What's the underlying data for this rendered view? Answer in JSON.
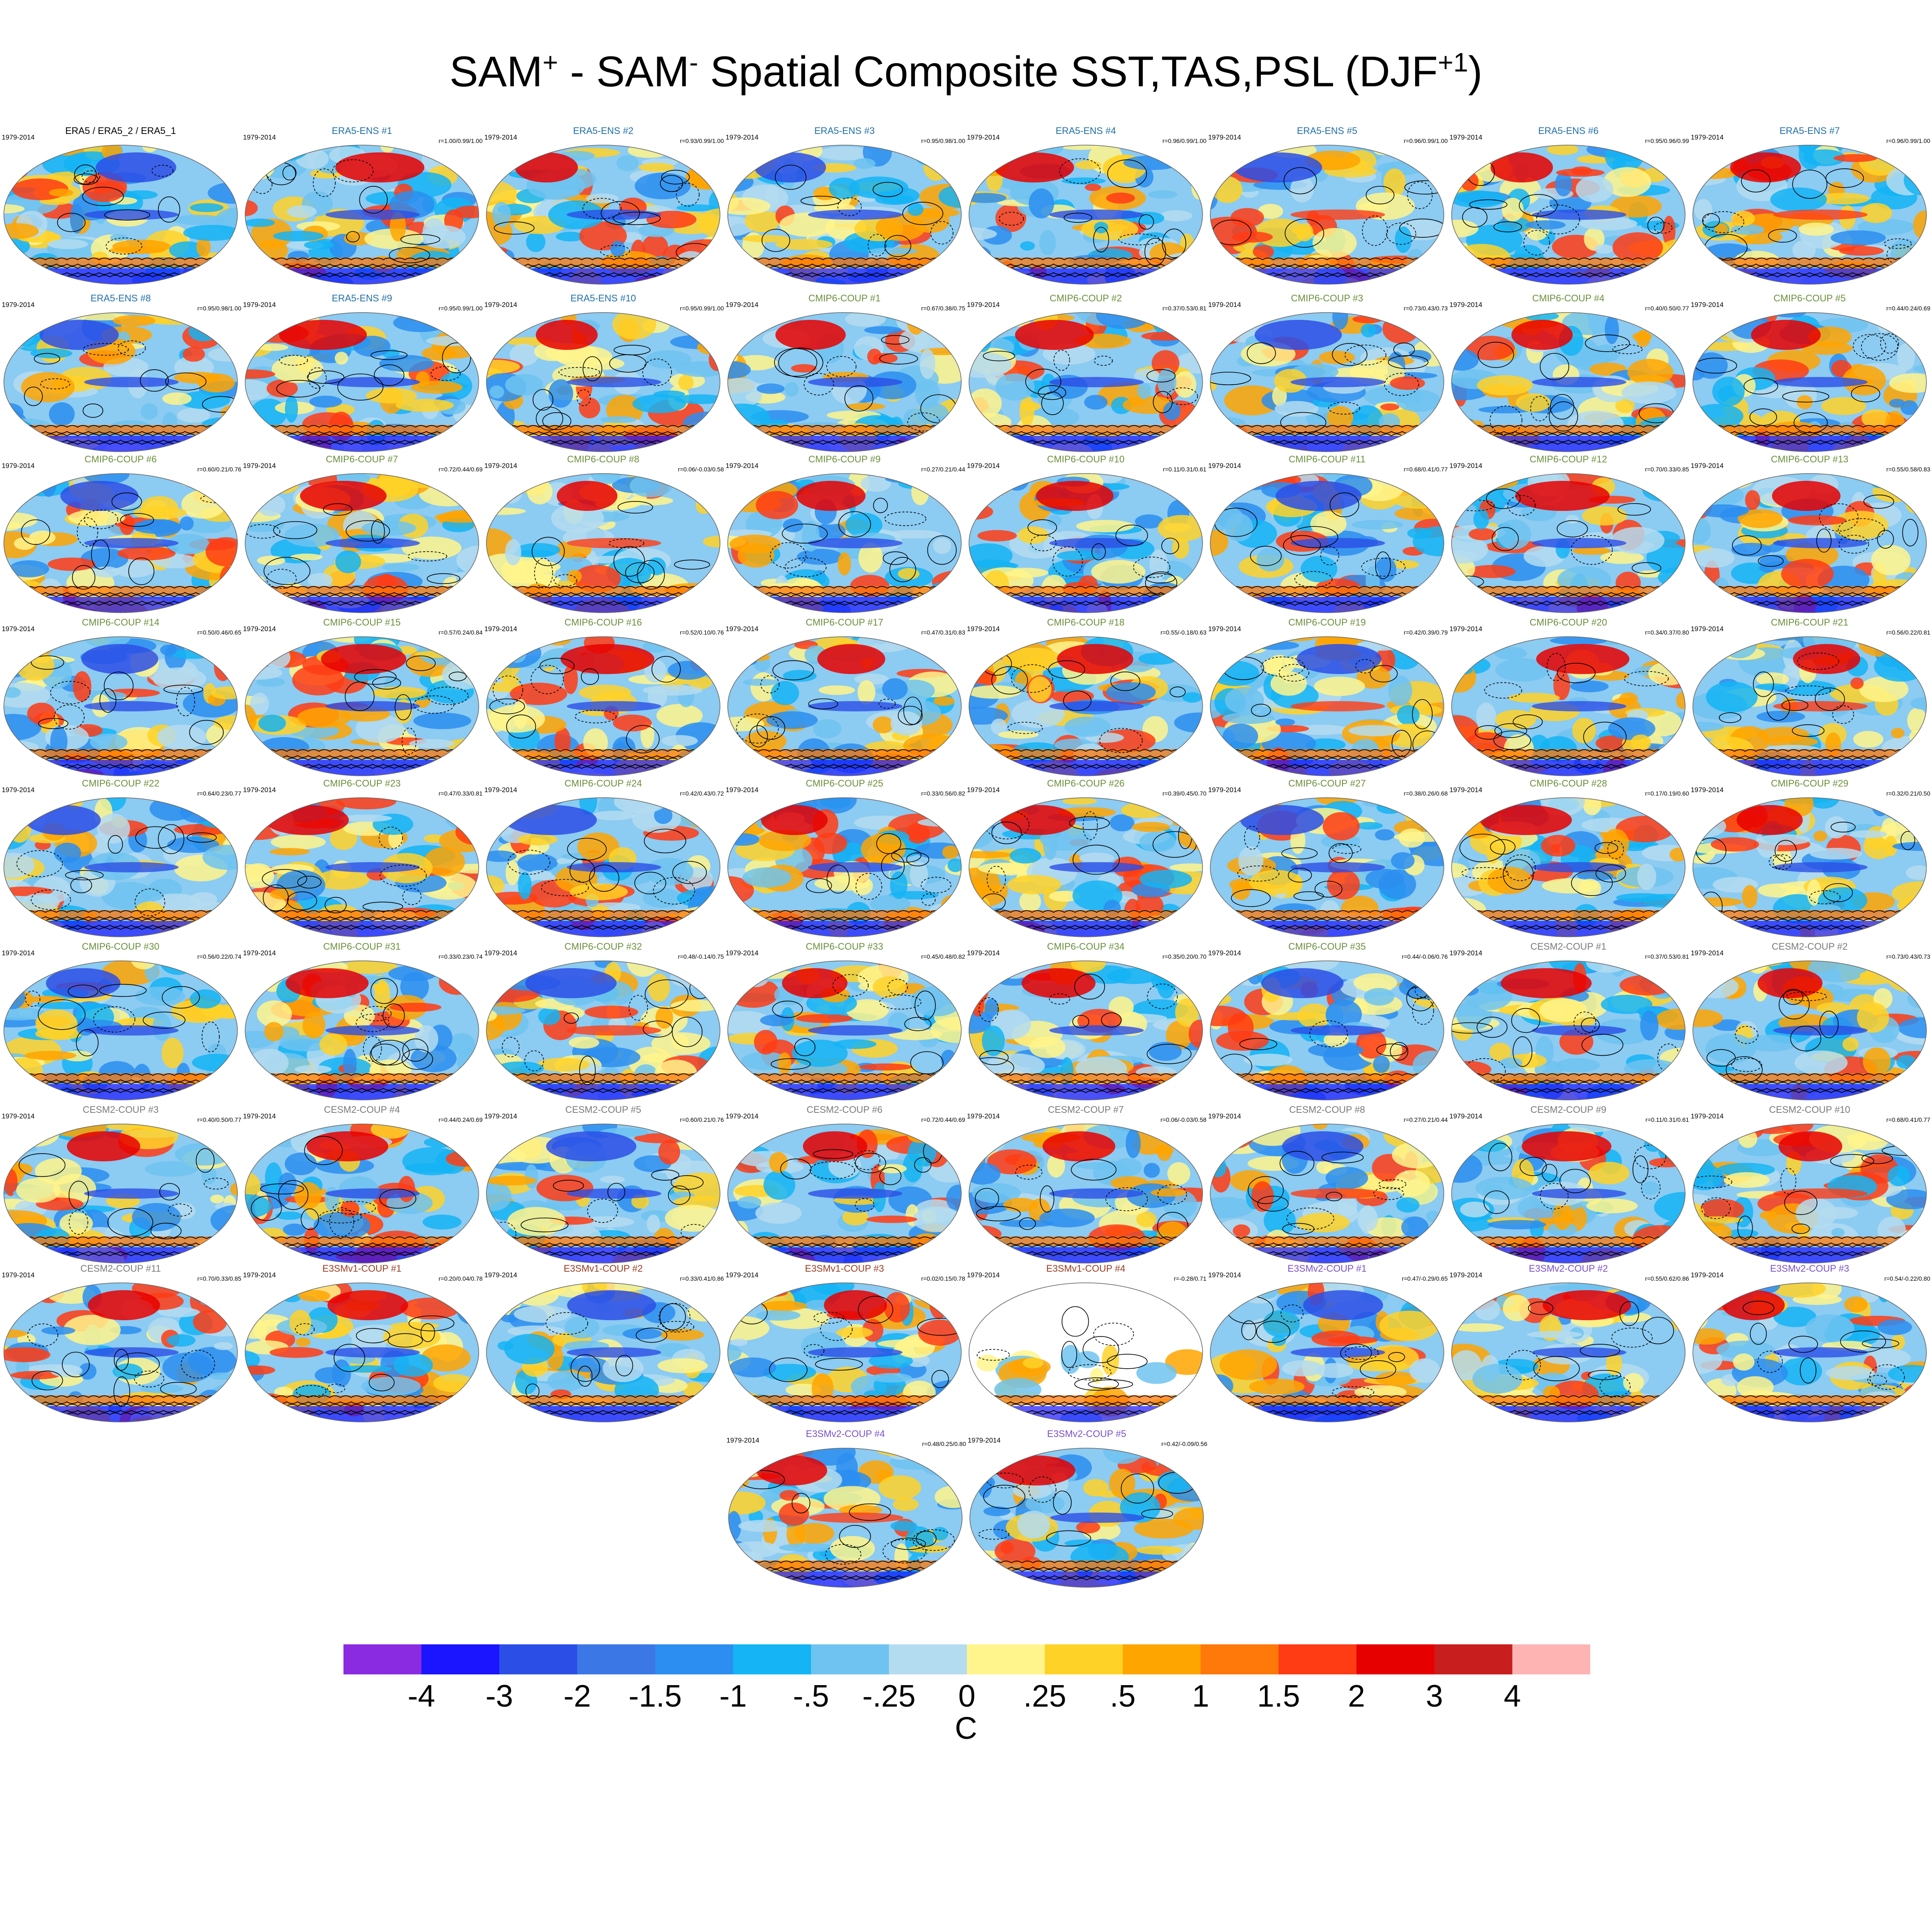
{
  "title": {
    "part1": "SAM",
    "sup1": "+",
    "part2": " - SAM",
    "sup2": "-",
    "part3": " Spatial Composite SST,TAS,PSL (DJF",
    "sup3": "+1",
    "part4": ")"
  },
  "period": "1979-2014",
  "group_colors": {
    "ref": "#000000",
    "ERA5-ENS": "#1f6fa8",
    "CMIP6-COUP": "#6a8f3a",
    "CESM2-COUP": "#7a7a7a",
    "E3SMv1-COUP": "#9a3a1f",
    "E3SMv2-COUP": "#7a4fc9"
  },
  "panels": [
    {
      "title": "ERA5 / ERA5_2 / ERA5_1",
      "group": "ref",
      "stats": ""
    },
    {
      "title": "ERA5-ENS   #1",
      "group": "ERA5-ENS",
      "stats": "r=1.00/0.99/1.00"
    },
    {
      "title": "ERA5-ENS   #2",
      "group": "ERA5-ENS",
      "stats": "r=0.93/0.99/1.00"
    },
    {
      "title": "ERA5-ENS   #3",
      "group": "ERA5-ENS",
      "stats": "r=0.95/0.98/1.00"
    },
    {
      "title": "ERA5-ENS   #4",
      "group": "ERA5-ENS",
      "stats": "r=0.96/0.99/1.00"
    },
    {
      "title": "ERA5-ENS   #5",
      "group": "ERA5-ENS",
      "stats": "r=0.96/0.99/1.00"
    },
    {
      "title": "ERA5-ENS   #6",
      "group": "ERA5-ENS",
      "stats": "r=0.95/0.96/0.99"
    },
    {
      "title": "ERA5-ENS   #7",
      "group": "ERA5-ENS",
      "stats": "r=0.96/0.99/1.00"
    },
    {
      "title": "ERA5-ENS   #8",
      "group": "ERA5-ENS",
      "stats": "r=0.95/0.98/1.00"
    },
    {
      "title": "ERA5-ENS   #9",
      "group": "ERA5-ENS",
      "stats": "r=0.95/0.99/1.00"
    },
    {
      "title": "ERA5-ENS   #10",
      "group": "ERA5-ENS",
      "stats": "r=0.95/0.99/1.00"
    },
    {
      "title": "CMIP6-COUP   #1",
      "group": "CMIP6-COUP",
      "stats": "r=0.67/0.38/0.75"
    },
    {
      "title": "CMIP6-COUP   #2",
      "group": "CMIP6-COUP",
      "stats": "r=0.37/0.53/0.81"
    },
    {
      "title": "CMIP6-COUP   #3",
      "group": "CMIP6-COUP",
      "stats": "r=0.73/0.43/0.73"
    },
    {
      "title": "CMIP6-COUP   #4",
      "group": "CMIP6-COUP",
      "stats": "r=0.40/0.50/0.77"
    },
    {
      "title": "CMIP6-COUP   #5",
      "group": "CMIP6-COUP",
      "stats": "r=0.44/0.24/0.69"
    },
    {
      "title": "CMIP6-COUP   #6",
      "group": "CMIP6-COUP",
      "stats": "r=0.60/0.21/0.76"
    },
    {
      "title": "CMIP6-COUP   #7",
      "group": "CMIP6-COUP",
      "stats": "r=0.72/0.44/0.69"
    },
    {
      "title": "CMIP6-COUP   #8",
      "group": "CMIP6-COUP",
      "stats": "r=0.06/-0.03/0.58"
    },
    {
      "title": "CMIP6-COUP   #9",
      "group": "CMIP6-COUP",
      "stats": "r=0.27/0.21/0.44"
    },
    {
      "title": "CMIP6-COUP   #10",
      "group": "CMIP6-COUP",
      "stats": "r=0.11/0.31/0.61"
    },
    {
      "title": "CMIP6-COUP   #11",
      "group": "CMIP6-COUP",
      "stats": "r=0.68/0.41/0.77"
    },
    {
      "title": "CMIP6-COUP   #12",
      "group": "CMIP6-COUP",
      "stats": "r=0.70/0.33/0.85"
    },
    {
      "title": "CMIP6-COUP   #13",
      "group": "CMIP6-COUP",
      "stats": "r=0.55/0.58/0.83"
    },
    {
      "title": "CMIP6-COUP   #14",
      "group": "CMIP6-COUP",
      "stats": "r=0.50/0.46/0.65"
    },
    {
      "title": "CMIP6-COUP   #15",
      "group": "CMIP6-COUP",
      "stats": "r=0.57/0.24/0.84"
    },
    {
      "title": "CMIP6-COUP   #16",
      "group": "CMIP6-COUP",
      "stats": "r=0.52/0.10/0.76"
    },
    {
      "title": "CMIP6-COUP   #17",
      "group": "CMIP6-COUP",
      "stats": "r=0.47/0.31/0.83"
    },
    {
      "title": "CMIP6-COUP   #18",
      "group": "CMIP6-COUP",
      "stats": "r=0.55/-0.18/0.63"
    },
    {
      "title": "CMIP6-COUP   #19",
      "group": "CMIP6-COUP",
      "stats": "r=0.42/0.39/0.79"
    },
    {
      "title": "CMIP6-COUP   #20",
      "group": "CMIP6-COUP",
      "stats": "r=0.34/0.37/0.80"
    },
    {
      "title": "CMIP6-COUP   #21",
      "group": "CMIP6-COUP",
      "stats": "r=0.56/0.22/0.81"
    },
    {
      "title": "CMIP6-COUP   #22",
      "group": "CMIP6-COUP",
      "stats": "r=0.64/0.23/0.77"
    },
    {
      "title": "CMIP6-COUP   #23",
      "group": "CMIP6-COUP",
      "stats": "r=0.47/0.33/0.81"
    },
    {
      "title": "CMIP6-COUP   #24",
      "group": "CMIP6-COUP",
      "stats": "r=0.42/0.43/0.72"
    },
    {
      "title": "CMIP6-COUP   #25",
      "group": "CMIP6-COUP",
      "stats": "r=0.33/0.56/0.82"
    },
    {
      "title": "CMIP6-COUP   #26",
      "group": "CMIP6-COUP",
      "stats": "r=0.39/0.45/0.70"
    },
    {
      "title": "CMIP6-COUP   #27",
      "group": "CMIP6-COUP",
      "stats": "r=0.38/0.26/0.68"
    },
    {
      "title": "CMIP6-COUP   #28",
      "group": "CMIP6-COUP",
      "stats": "r=0.17/0.19/0.60"
    },
    {
      "title": "CMIP6-COUP   #29",
      "group": "CMIP6-COUP",
      "stats": "r=0.32/0.21/0.50"
    },
    {
      "title": "CMIP6-COUP   #30",
      "group": "CMIP6-COUP",
      "stats": "r=0.56/0.22/0.74"
    },
    {
      "title": "CMIP6-COUP   #31",
      "group": "CMIP6-COUP",
      "stats": "r=0.33/0.23/0.74"
    },
    {
      "title": "CMIP6-COUP   #32",
      "group": "CMIP6-COUP",
      "stats": "r=0.48/-0.14/0.75"
    },
    {
      "title": "CMIP6-COUP   #33",
      "group": "CMIP6-COUP",
      "stats": "r=0.45/0.48/0.82"
    },
    {
      "title": "CMIP6-COUP   #34",
      "group": "CMIP6-COUP",
      "stats": "r=0.35/0.20/0.70"
    },
    {
      "title": "CMIP6-COUP   #35",
      "group": "CMIP6-COUP",
      "stats": "r=0.44/-0.06/0.76"
    },
    {
      "title": "CESM2-COUP   #1",
      "group": "CESM2-COUP",
      "stats": "r=0.37/0.53/0.81"
    },
    {
      "title": "CESM2-COUP   #2",
      "group": "CESM2-COUP",
      "stats": "r=0.73/0.43/0.73"
    },
    {
      "title": "CESM2-COUP   #3",
      "group": "CESM2-COUP",
      "stats": "r=0.40/0.50/0.77"
    },
    {
      "title": "CESM2-COUP   #4",
      "group": "CESM2-COUP",
      "stats": "r=0.44/0.24/0.69"
    },
    {
      "title": "CESM2-COUP   #5",
      "group": "CESM2-COUP",
      "stats": "r=0.60/0.21/0.76"
    },
    {
      "title": "CESM2-COUP   #6",
      "group": "CESM2-COUP",
      "stats": "r=0.72/0.44/0.69"
    },
    {
      "title": "CESM2-COUP   #7",
      "group": "CESM2-COUP",
      "stats": "r=0.06/-0.03/0.58"
    },
    {
      "title": "CESM2-COUP   #8",
      "group": "CESM2-COUP",
      "stats": "r=0.27/0.21/0.44"
    },
    {
      "title": "CESM2-COUP   #9",
      "group": "CESM2-COUP",
      "stats": "r=0.11/0.31/0.61"
    },
    {
      "title": "CESM2-COUP   #10",
      "group": "CESM2-COUP",
      "stats": "r=0.68/0.41/0.77"
    },
    {
      "title": "CESM2-COUP   #11",
      "group": "CESM2-COUP",
      "stats": "r=0.70/0.33/0.85"
    },
    {
      "title": "E3SMv1-COUP #1",
      "group": "E3SMv1-COUP",
      "stats": "r=0.20/0.04/0.78"
    },
    {
      "title": "E3SMv1-COUP #2",
      "group": "E3SMv1-COUP",
      "stats": "r=0.33/0.41/0.86"
    },
    {
      "title": "E3SMv1-COUP #3",
      "group": "E3SMv1-COUP",
      "stats": "r=0.02/0.15/0.78"
    },
    {
      "title": "E3SMv1-COUP #4",
      "group": "E3SMv1-COUP",
      "stats": "r=-0.28/0.71",
      "no_ocean": true
    },
    {
      "title": "E3SMv2-COUP #1",
      "group": "E3SMv2-COUP",
      "stats": "r=0.47/-0.29/0.65"
    },
    {
      "title": "E3SMv2-COUP #2",
      "group": "E3SMv2-COUP",
      "stats": "r=0.55/0.62/0.86"
    },
    {
      "title": "E3SMv2-COUP #3",
      "group": "E3SMv2-COUP",
      "stats": "r=0.54/-0.22/0.80"
    },
    {
      "title": "E3SMv2-COUP #4",
      "group": "E3SMv2-COUP",
      "stats": "r=0.48/0.25/0.80"
    },
    {
      "title": "E3SMv2-COUP #5",
      "group": "E3SMv2-COUP",
      "stats": "r=0.42/-0.09/0.56"
    }
  ],
  "colorbar": {
    "colors": [
      "#8a2be2",
      "#1a14ff",
      "#2b4fe6",
      "#3b78e6",
      "#2b8ef0",
      "#14b4f5",
      "#6ec3f0",
      "#b4dcf0",
      "#fff58c",
      "#ffd228",
      "#ffa500",
      "#ff780a",
      "#ff3c14",
      "#e60000",
      "#c81e1e",
      "#ffb4b4"
    ],
    "labels": [
      "-4",
      "-3",
      "-2",
      "-1.5",
      "-1",
      "-.5",
      "-.25",
      "0",
      ".25",
      ".5",
      "1",
      "1.5",
      "2",
      "3",
      "4"
    ],
    "units": "C"
  }
}
